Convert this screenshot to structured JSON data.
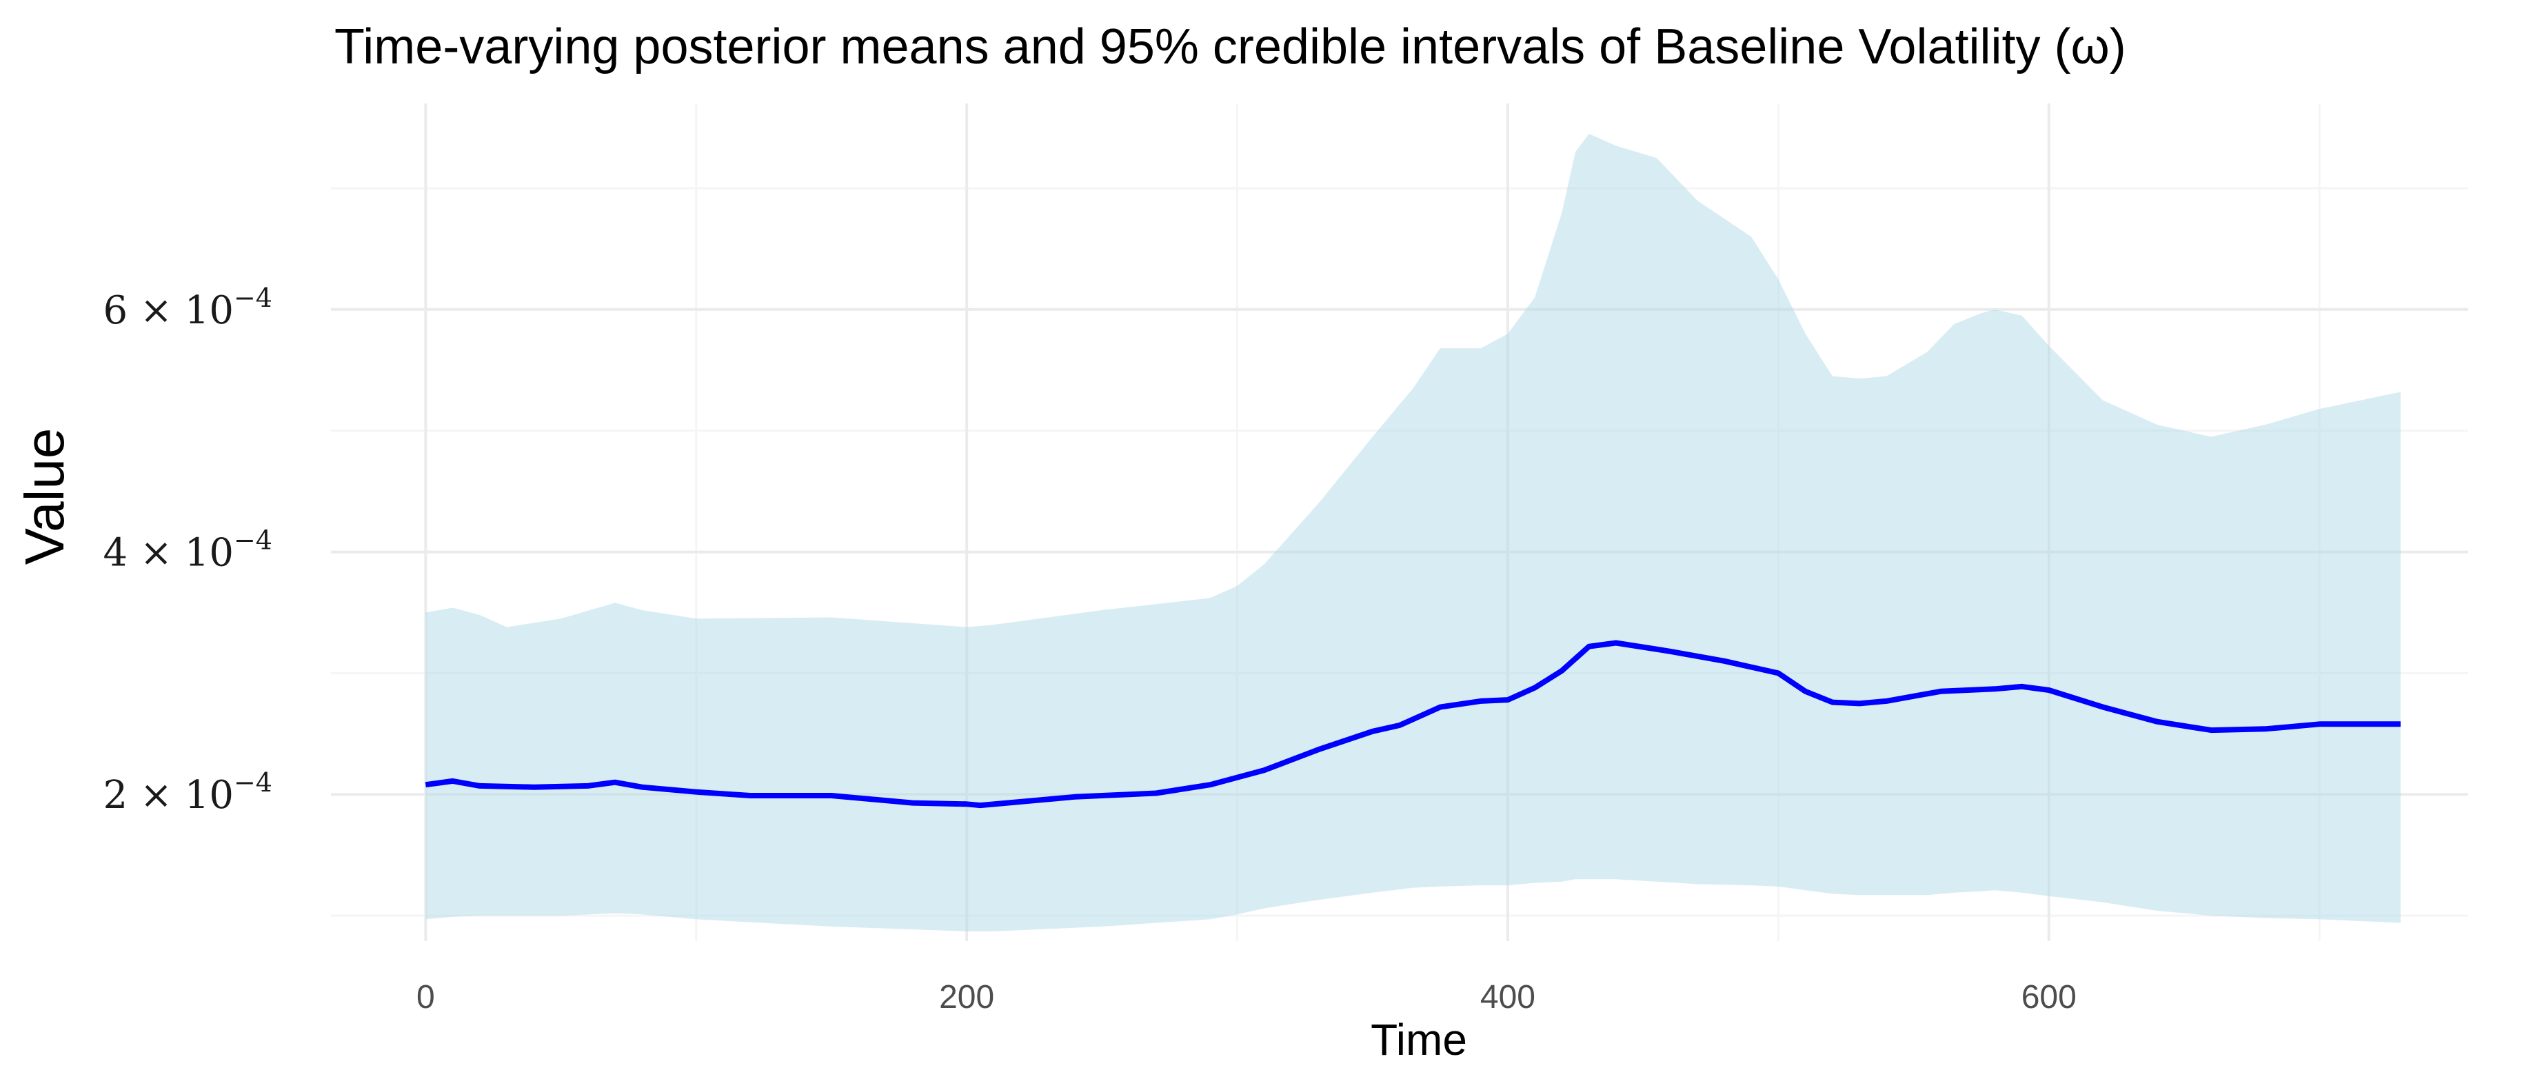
{
  "chart_data": {
    "type": "area",
    "title": "Time-varying posterior means and 95% credible intervals of Baseline Volatility (ω)",
    "xlabel": "Time",
    "ylabel": "Value",
    "xlim": [
      -35,
      755
    ],
    "ylim": [
      7.9e-05,
      0.00077
    ],
    "x_ticks": [
      0,
      200,
      400,
      600
    ],
    "x_tick_labels": [
      "0",
      "200",
      "400",
      "600"
    ],
    "y_ticks": [
      0.0002,
      0.0004,
      0.0006
    ],
    "y_tick_labels": [
      {
        "mantissa": "2",
        "times": "×",
        "base": "10",
        "exp": "−4"
      },
      {
        "mantissa": "4",
        "times": "×",
        "base": "10",
        "exp": "−4"
      },
      {
        "mantissa": "6",
        "times": "×",
        "base": "10",
        "exp": "−4"
      }
    ],
    "grid": true,
    "legend": "none",
    "colors": {
      "mean_line": "#0000ff",
      "band_fill": "#add8e6",
      "grid_major": "#ebebeb",
      "grid_minor": "#f5f5f5"
    },
    "series": [
      {
        "kind": "line",
        "x": [
          0,
          10,
          20,
          40,
          60,
          70,
          80,
          100,
          120,
          150,
          180,
          200,
          205,
          215,
          240,
          270,
          290,
          310,
          330,
          350,
          360,
          375,
          390,
          400,
          410,
          420,
          430,
          440,
          460,
          480,
          500,
          510,
          520,
          530,
          540,
          560,
          570,
          580,
          590,
          600,
          620,
          640,
          660,
          680,
          700,
          730
        ],
        "y": [
          0.000208,
          0.000211,
          0.000207,
          0.000206,
          0.000207,
          0.00021,
          0.000206,
          0.000202,
          0.000199,
          0.000199,
          0.000193,
          0.000192,
          0.000191,
          0.000193,
          0.000198,
          0.000201,
          0.000208,
          0.00022,
          0.000237,
          0.000252,
          0.000257,
          0.000272,
          0.000277,
          0.000278,
          0.000288,
          0.000302,
          0.000322,
          0.000325,
          0.000318,
          0.00031,
          0.0003,
          0.000285,
          0.000276,
          0.000275,
          0.000277,
          0.000285,
          0.000286,
          0.000287,
          0.000289,
          0.000286,
          0.000272,
          0.00026,
          0.000253,
          0.000254,
          0.000258,
          0.000258
        ]
      },
      {
        "kind": "band",
        "x": [
          0,
          10,
          20,
          30,
          50,
          70,
          80,
          100,
          150,
          200,
          210,
          250,
          290,
          300,
          310,
          330,
          350,
          365,
          375,
          390,
          400,
          410,
          420,
          425,
          430,
          440,
          455,
          470,
          490,
          500,
          510,
          520,
          530,
          540,
          555,
          565,
          575,
          580,
          590,
          600,
          620,
          640,
          660,
          680,
          700,
          730
        ],
        "lower": [
          9.7e-05,
          9.9e-05,
          0.0001,
          0.0001,
          0.0001,
          0.000102,
          0.000101,
          9.7e-05,
          9.1e-05,
          8.7e-05,
          8.7e-05,
          9.1e-05,
          9.7e-05,
          0.000101,
          0.000106,
          0.000113,
          0.000119,
          0.000123,
          0.000124,
          0.000125,
          0.000125,
          0.000127,
          0.000128,
          0.00013,
          0.00013,
          0.00013,
          0.000128,
          0.000126,
          0.000125,
          0.000124,
          0.000121,
          0.000118,
          0.000117,
          0.000117,
          0.000117,
          0.000119,
          0.00012,
          0.000121,
          0.000119,
          0.000116,
          0.000111,
          0.000104,
          0.0001,
          9.8e-05,
          9.7e-05,
          9.4e-05
        ],
        "upper": [
          0.00035,
          0.000354,
          0.000348,
          0.000338,
          0.000345,
          0.000358,
          0.000352,
          0.000345,
          0.000346,
          0.000338,
          0.00034,
          0.000352,
          0.000362,
          0.000372,
          0.00039,
          0.00044,
          0.000495,
          0.000535,
          0.000568,
          0.000568,
          0.00058,
          0.00061,
          0.00068,
          0.00073,
          0.000745,
          0.000735,
          0.000725,
          0.00069,
          0.00066,
          0.000625,
          0.00058,
          0.000545,
          0.000543,
          0.000545,
          0.000565,
          0.000588,
          0.000597,
          0.0006,
          0.000595,
          0.00057,
          0.000525,
          0.000505,
          0.000495,
          0.000505,
          0.000518,
          0.000532
        ]
      }
    ]
  }
}
